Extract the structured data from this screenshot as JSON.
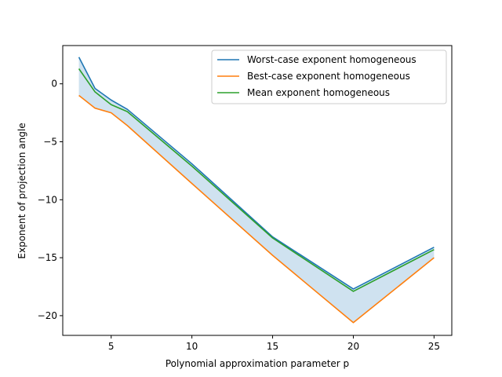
{
  "chart_data": {
    "type": "line",
    "title": "",
    "xlabel": "Polynomial approximation parameter p",
    "ylabel": "Exponent of projection angle",
    "xlim": [
      2.0,
      26.1
    ],
    "ylim": [
      -21.7,
      3.3
    ],
    "x_ticks": [
      5,
      10,
      15,
      20,
      25
    ],
    "y_ticks": [
      0,
      -5,
      -10,
      -15,
      -20
    ],
    "x_tick_labels": [
      "5",
      "10",
      "15",
      "20",
      "25"
    ],
    "y_tick_labels": [
      "0",
      "−5",
      "−10",
      "−15",
      "−20"
    ],
    "grid": false,
    "legend_position": "upper-right",
    "x": [
      3,
      4,
      5,
      6,
      10,
      15,
      20,
      25
    ],
    "series": [
      {
        "name": "Worst-case exponent homogeneous",
        "color": "#1f77b4",
        "values": [
          2.3,
          -0.4,
          -1.4,
          -2.2,
          -6.9,
          -13.2,
          -17.7,
          -14.1
        ]
      },
      {
        "name": "Best-case exponent homogeneous",
        "color": "#ff7f0e",
        "values": [
          -1.0,
          -2.1,
          -2.5,
          -3.6,
          -8.6,
          -14.8,
          -20.6,
          -15.0
        ]
      },
      {
        "name": "Mean exponent homogeneous",
        "color": "#2ca02c",
        "values": [
          1.3,
          -0.7,
          -1.8,
          -2.4,
          -7.1,
          -13.3,
          -17.9,
          -14.3
        ]
      }
    ],
    "band": {
      "between": [
        "Worst-case exponent homogeneous",
        "Best-case exponent homogeneous"
      ],
      "color": "#cfe2f0"
    }
  }
}
